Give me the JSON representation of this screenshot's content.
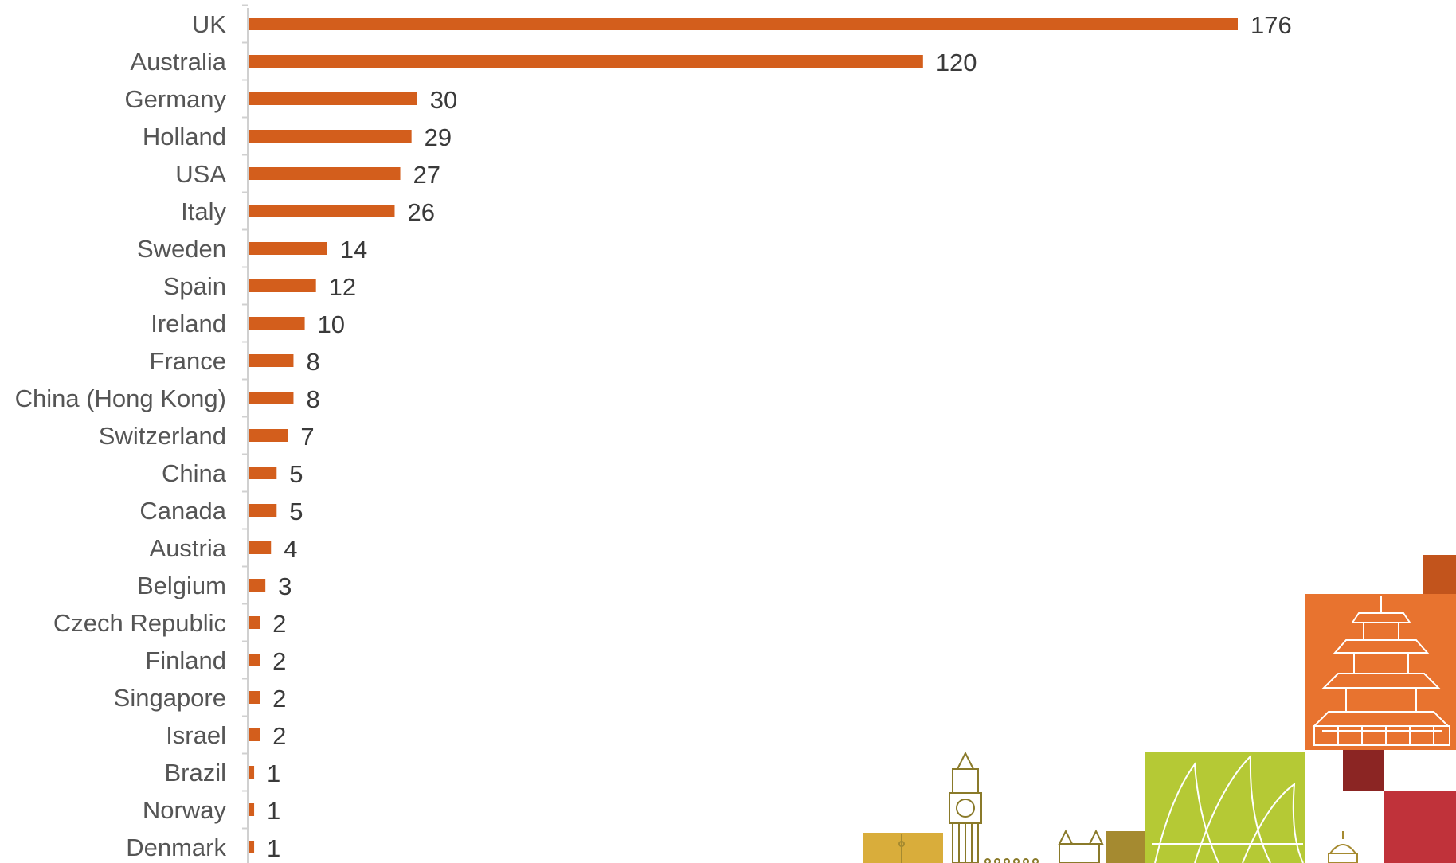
{
  "chart_data": {
    "type": "bar",
    "orientation": "horizontal",
    "categories": [
      "UK",
      "Australia",
      "Germany",
      "Holland",
      "USA",
      "Italy",
      "Sweden",
      "Spain",
      "Ireland",
      "France",
      "China (Hong Kong)",
      "Switzerland",
      "China",
      "Canada",
      "Austria",
      "Belgium",
      "Czech Republic",
      "Finland",
      "Singapore",
      "Israel",
      "Brazil",
      "Norway",
      "Denmark"
    ],
    "values": [
      176,
      120,
      30,
      29,
      27,
      26,
      14,
      12,
      10,
      8,
      8,
      7,
      5,
      5,
      4,
      3,
      2,
      2,
      2,
      2,
      1,
      1,
      1
    ],
    "title": "",
    "xlabel": "",
    "ylabel": "",
    "xlim": [
      0,
      176
    ],
    "grid": false,
    "legend": "none",
    "data_labels": true,
    "colors": {
      "bar": "#d35e1c",
      "axis": "#d0d0d0",
      "category_text": "#555555",
      "value_text": "#3a3a3a"
    }
  },
  "decoration": {
    "name": "city-landmarks-illustration",
    "colors": [
      "#c2541c",
      "#e8732f",
      "#8b2523",
      "#c0323a",
      "#b5c935",
      "#a58a30",
      "#d9ad3b"
    ]
  }
}
